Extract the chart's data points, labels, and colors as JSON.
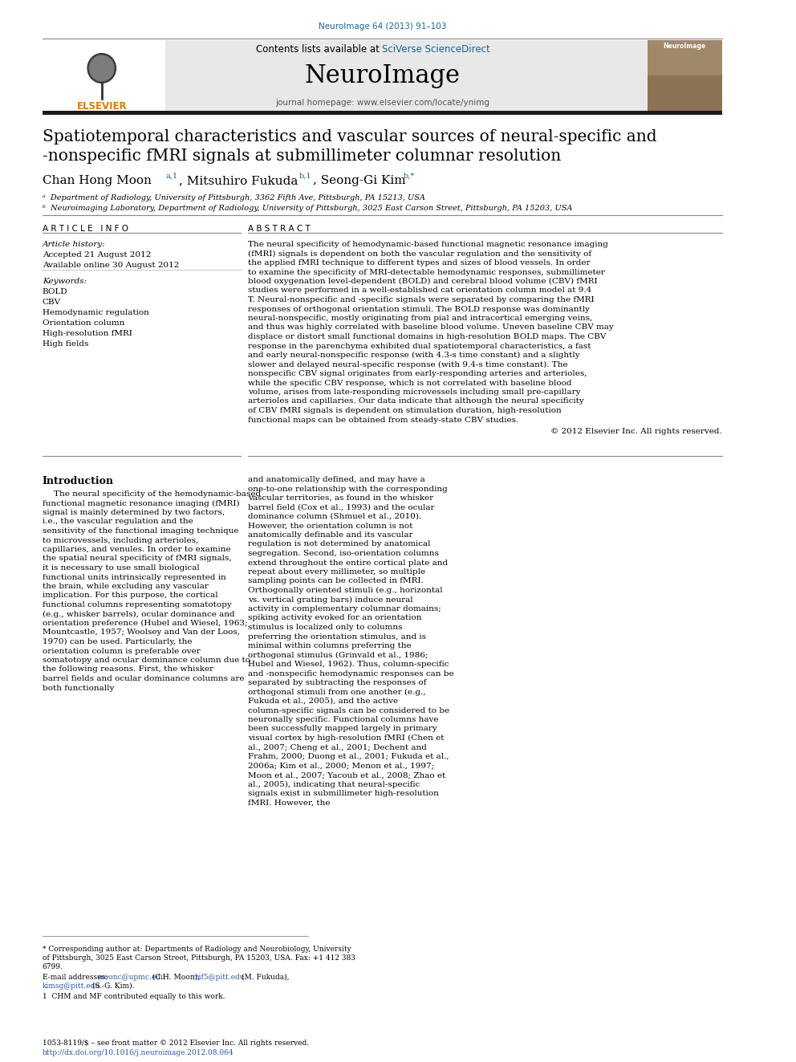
{
  "page_title_journal": "NeuroImage 64 (2013) 91–103",
  "journal_name": "NeuroImage",
  "journal_subtitle": "journal homepage: www.elsevier.com/locate/ynimg",
  "contents_line": "Contents lists available at SciVerse ScienceDirect",
  "paper_title_line1": "Spatiotemporal characteristics and vascular sources of neural-specific and",
  "paper_title_line2": "-nonspecific fMRI signals at submillimeter columnar resolution",
  "article_info_header": "A R T I C L E   I N F O",
  "article_history_header": "Article history:",
  "accepted": "Accepted 21 August 2012",
  "available": "Available online 30 August 2012",
  "keywords_header": "Keywords:",
  "keywords": [
    "BOLD",
    "CBV",
    "Hemodynamic regulation",
    "Orientation column",
    "High-resolution fMRI",
    "High fields"
  ],
  "abstract_header": "A B S T R A C T",
  "abstract_text": "The neural specificity of hemodynamic-based functional magnetic resonance imaging (fMRI) signals is dependent on both the vascular regulation and the sensitivity of the applied fMRI technique to different types and sizes of blood vessels. In order to examine the specificity of MRI-detectable hemodynamic responses, submillimeter blood oxygenation level-dependent (BOLD) and cerebral blood volume (CBV) fMRI studies were performed in a well-established cat orientation column model at 9.4 T. Neural-nonspecific and -specific signals were separated by comparing the fMRI responses of orthogonal orientation stimuli. The BOLD response was dominantly neural-nonspecific, mostly originating from pial and intracortical emerging veins, and thus was highly correlated with baseline blood volume. Uneven baseline CBV may displace or distort small functional domains in high-resolution BOLD maps. The CBV response in the parenchyma exhibited dual spatiotemporal characteristics, a fast and early neural-nonspecific response (with 4.3-s time constant) and a slightly slower and delayed neural-specific response (with 9.4-s time constant). The nonspecific CBV signal originates from early-responding arteries and arterioles, while the specific CBV response, which is not correlated with baseline blood volume, arises from late-responding microvessels including small pre-capillary arterioles and capillaries. Our data indicate that although the neural specificity of CBV fMRI signals is dependent on stimulation duration, high-resolution functional maps can be obtained from steady-state CBV studies.",
  "copyright": "© 2012 Elsevier Inc. All rights reserved.",
  "intro_header": "Introduction",
  "intro_text": "The neural specificity of the hemodynamic-based functional magnetic resonance imaging (fMRI) signal is mainly determined by two factors, i.e., the vascular regulation and the sensitivity of the functional imaging technique to microvessels, including arterioles, capillaries, and venules. In order to examine the spatial neural specificity of fMRI signals, it is necessary to use small biological functional units intrinsically represented in the brain, while excluding any vascular implication. For this purpose, the cortical functional columns representing somatotopy (e.g., whisker barrels), ocular dominance and orientation preference (Hubel and Wiesel, 1963; Mountcastle, 1957; Woolsey and Van der Loos, 1970) can be used. Particularly, the orientation column is preferable over somatotopy and ocular dominance column due to the following reasons. First, the whisker barrel fields and ocular dominance columns are both functionally",
  "intro_text_right": "and anatomically defined, and may have a one-to-one relationship with the corresponding vascular territories, as found in the whisker barrel field (Cox et al., 1993) and the ocular dominance column (Shmuel et al., 2010). However, the orientation column is not anatomically definable and its vascular regulation is not determined by anatomical segregation. Second, iso-orientation columns extend throughout the entire cortical plate and repeat about every millimeter, so multiple sampling points can be collected in fMRI. Orthogonally oriented stimuli (e.g., horizontal vs. vertical grating bars) induce neural activity in complementary columnar domains; spiking activity evoked for an orientation stimulus is localized only to columns preferring the orientation stimulus, and is minimal within columns preferring the orthogonal stimulus (Grinvald et al., 1986; Hubel and Wiesel, 1962). Thus, column-specific and -nonspecific hemodynamic responses can be separated by subtracting the responses of orthogonal stimuli from one another (e.g., Fukuda et al., 2005), and the active column-specific signals can be considered to be neuronally specific. Functional columns have been successfully mapped largely in primary visual cortex by high-resolution fMRI (Chen et al., 2007; Cheng et al., 2001; Dechent and Frahm, 2000; Duong et al., 2001; Fukuda et al., 2006a; Kim et al., 2000; Menon et al., 1997; Moon et al., 2007; Yacoub et al., 2008; Zhao et al., 2005), indicating that neural-specific signals exist in submillimeter high-resolution fMRI. However, the",
  "footer_issn": "1053-8119/$ – see front matter © 2012 Elsevier Inc. All rights reserved.",
  "footer_doi": "http://dx.doi.org/10.1016/j.neuroimage.2012.08.064",
  "color_blue": "#1a6496",
  "color_orange": "#e07b00",
  "color_header_bg": "#e8e8e8",
  "color_thick_bar": "#1a1a1a",
  "color_link": "#2255aa"
}
